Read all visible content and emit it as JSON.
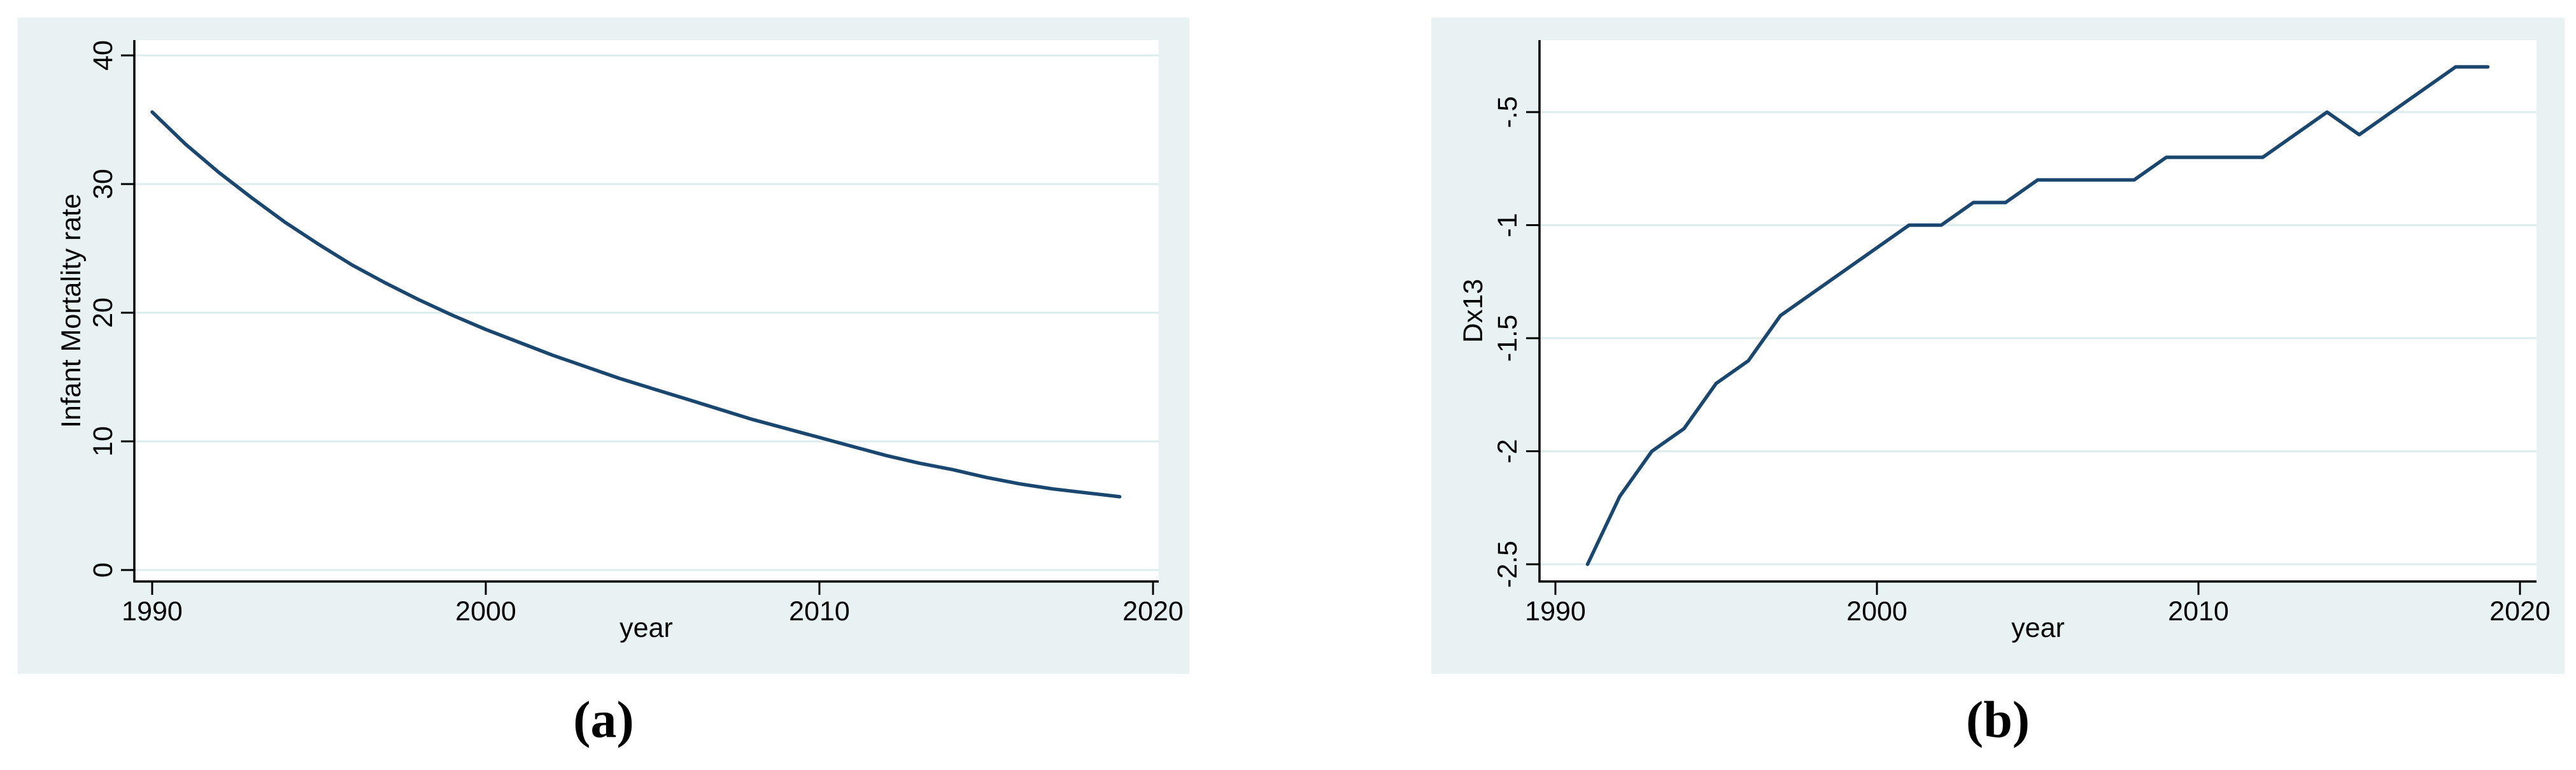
{
  "figure": {
    "background": "#ffffff",
    "panel_background": "#e9f2f3",
    "plot_background": "#ffffff",
    "grid_color": "#dcebec",
    "line_color": "#1a476f",
    "axis_color": "#000000",
    "text_color": "#000000"
  },
  "captions": {
    "a": "(a)",
    "b": "(b)"
  },
  "chart_data": [
    {
      "id": "a",
      "type": "line",
      "caption": "(a)",
      "title": "",
      "xlabel": "year",
      "ylabel": "Infant Mortality rate",
      "legend_position": "none",
      "grid": "horizontal",
      "xlim": [
        1990,
        2020
      ],
      "ylim": [
        0,
        40
      ],
      "x_tick_values": [
        1990,
        2000,
        2010,
        2020
      ],
      "x_tick_labels": [
        "1990",
        "2000",
        "2010",
        "2020"
      ],
      "y_tick_values": [
        0,
        10,
        20,
        30,
        40
      ],
      "y_tick_labels": [
        "0",
        "10",
        "20",
        "30",
        "40"
      ],
      "x": [
        1990,
        1991,
        1992,
        1993,
        1994,
        1995,
        1996,
        1997,
        1998,
        1999,
        2000,
        2001,
        2002,
        2003,
        2004,
        2005,
        2006,
        2007,
        2008,
        2009,
        2010,
        2011,
        2012,
        2013,
        2014,
        2015,
        2016,
        2017,
        2018,
        2019
      ],
      "y": [
        35.6,
        33.1,
        30.9,
        28.9,
        27.0,
        25.3,
        23.7,
        22.3,
        21.0,
        19.8,
        18.7,
        17.7,
        16.7,
        15.8,
        14.9,
        14.1,
        13.3,
        12.5,
        11.7,
        11.0,
        10.3,
        9.6,
        8.9,
        8.3,
        7.8,
        7.2,
        6.7,
        6.3,
        6.0,
        5.7
      ]
    },
    {
      "id": "b",
      "type": "line",
      "caption": "(b)",
      "title": "",
      "xlabel": "year",
      "ylabel": "Dx13",
      "legend_position": "none",
      "grid": "horizontal",
      "xlim": [
        1990,
        2020
      ],
      "ylim": [
        -2.5,
        -0.5
      ],
      "x_tick_values": [
        1990,
        2000,
        2010,
        2020
      ],
      "x_tick_labels": [
        "1990",
        "2000",
        "2010",
        "2020"
      ],
      "y_tick_values": [
        -0.5,
        -1,
        -1.5,
        -2,
        -2.5
      ],
      "y_tick_labels": [
        "-.5",
        "-1",
        "-1.5",
        "-2",
        "-2.5"
      ],
      "x": [
        1991,
        1992,
        1993,
        1994,
        1995,
        1996,
        1997,
        1998,
        1999,
        2000,
        2001,
        2002,
        2003,
        2004,
        2005,
        2006,
        2007,
        2008,
        2009,
        2010,
        2011,
        2012,
        2013,
        2014,
        2015,
        2016,
        2017,
        2018,
        2019
      ],
      "y": [
        -2.5,
        -2.2,
        -2.0,
        -1.9,
        -1.7,
        -1.6,
        -1.4,
        -1.3,
        -1.2,
        -1.1,
        -1.0,
        -1.0,
        -0.9,
        -0.9,
        -0.8,
        -0.8,
        -0.8,
        -0.8,
        -0.7,
        -0.7,
        -0.7,
        -0.7,
        -0.6,
        -0.5,
        -0.6,
        -0.5,
        -0.4,
        -0.3,
        -0.3
      ]
    }
  ]
}
